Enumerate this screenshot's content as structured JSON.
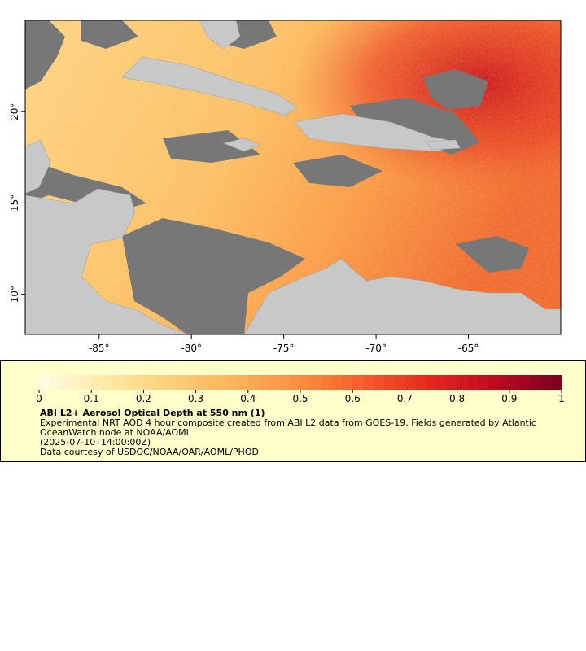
{
  "map": {
    "lonlim": [
      -89,
      -60
    ],
    "latlim": [
      7.8,
      25
    ],
    "lon_ticks": [
      {
        "value": -85,
        "label": "-85°"
      },
      {
        "value": -80,
        "label": "-80°"
      },
      {
        "value": -75,
        "label": "-75°"
      },
      {
        "value": -70,
        "label": "-70°"
      },
      {
        "value": -65,
        "label": "-65°"
      }
    ],
    "lat_ticks": [
      {
        "value": 20,
        "label": "20°"
      },
      {
        "value": 15,
        "label": "15°"
      },
      {
        "value": 10,
        "label": "10°"
      }
    ]
  },
  "colorbar": {
    "lim": [
      0,
      1
    ],
    "ticks": [
      0,
      0.1,
      0.2,
      0.3,
      0.4,
      0.5,
      0.6,
      0.7,
      0.8,
      0.9,
      1
    ],
    "colors": [
      "#fffde6",
      "#feeaa8",
      "#fdd07a",
      "#fdb25a",
      "#fb8e3e",
      "#f55a2b",
      "#e4261d",
      "#bd0a22",
      "#7a0022"
    ]
  },
  "legend": {
    "title": "ABI L2+ Aerosol Optical Depth at 550 nm (1)",
    "description": "Experimental NRT AOD 4 hour composite created from ABI L2 data from GOES-19. Fields generated by Atlantic OceanWatch node at NOAA/AOML",
    "timestamp": "(2025-07-10T14:00:00Z)",
    "credit": "Data courtesy of USDOC/NOAA/OAR/AOML/PHOD"
  }
}
